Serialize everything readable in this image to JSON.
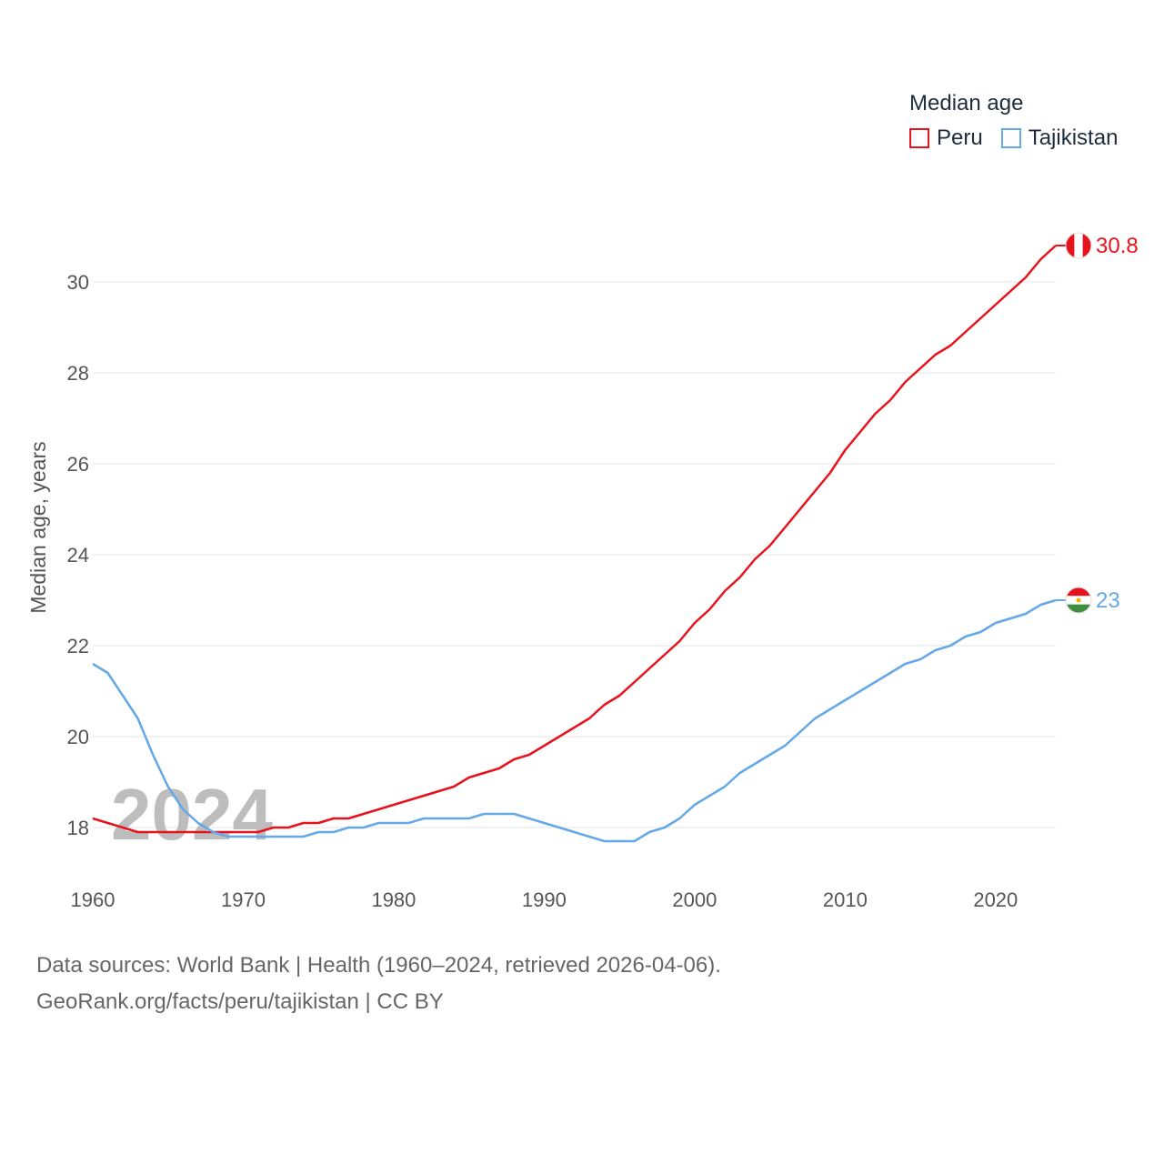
{
  "chart_data": {
    "type": "line",
    "title": "",
    "xlabel": "",
    "ylabel": "Median age, years",
    "xlim": [
      1960,
      2024
    ],
    "ylim": [
      17.0,
      31.4
    ],
    "x_ticks": [
      1960,
      1970,
      1980,
      1990,
      2000,
      2010,
      2020
    ],
    "y_ticks": [
      18,
      20,
      22,
      24,
      26,
      28,
      30
    ],
    "grid": true,
    "year_watermark": "2024",
    "legend": {
      "title": "Median age",
      "position": "top-right"
    },
    "x": [
      1960,
      1961,
      1962,
      1963,
      1964,
      1965,
      1966,
      1967,
      1968,
      1969,
      1970,
      1971,
      1972,
      1973,
      1974,
      1975,
      1976,
      1977,
      1978,
      1979,
      1980,
      1981,
      1982,
      1983,
      1984,
      1985,
      1986,
      1987,
      1988,
      1989,
      1990,
      1991,
      1992,
      1993,
      1994,
      1995,
      1996,
      1997,
      1998,
      1999,
      2000,
      2001,
      2002,
      2003,
      2004,
      2005,
      2006,
      2007,
      2008,
      2009,
      2010,
      2011,
      2012,
      2013,
      2014,
      2015,
      2016,
      2017,
      2018,
      2019,
      2020,
      2021,
      2022,
      2023,
      2024
    ],
    "series": [
      {
        "name": "Peru",
        "color": "#e8121d",
        "end_label": "30.8",
        "values": [
          18.2,
          18.1,
          18.0,
          17.9,
          17.9,
          17.9,
          17.9,
          17.9,
          17.9,
          17.9,
          17.9,
          17.9,
          18.0,
          18.0,
          18.1,
          18.1,
          18.2,
          18.2,
          18.3,
          18.4,
          18.5,
          18.6,
          18.7,
          18.8,
          18.9,
          19.1,
          19.2,
          19.3,
          19.5,
          19.6,
          19.8,
          20.0,
          20.2,
          20.4,
          20.7,
          20.9,
          21.2,
          21.5,
          21.8,
          22.1,
          22.5,
          22.8,
          23.2,
          23.5,
          23.9,
          24.2,
          24.6,
          25.0,
          25.4,
          25.8,
          26.3,
          26.7,
          27.1,
          27.4,
          27.8,
          28.1,
          28.4,
          28.6,
          28.9,
          29.2,
          29.5,
          29.8,
          30.1,
          30.5,
          30.8
        ]
      },
      {
        "name": "Tajikistan",
        "color": "#64a8e8",
        "end_label": "23",
        "values": [
          21.6,
          21.4,
          20.9,
          20.4,
          19.6,
          18.9,
          18.4,
          18.1,
          17.9,
          17.8,
          17.8,
          17.8,
          17.8,
          17.8,
          17.8,
          17.9,
          17.9,
          18.0,
          18.0,
          18.1,
          18.1,
          18.1,
          18.2,
          18.2,
          18.2,
          18.2,
          18.3,
          18.3,
          18.3,
          18.2,
          18.1,
          18.0,
          17.9,
          17.8,
          17.7,
          17.7,
          17.7,
          17.9,
          18.0,
          18.2,
          18.5,
          18.7,
          18.9,
          19.2,
          19.4,
          19.6,
          19.8,
          20.1,
          20.4,
          20.6,
          20.8,
          21.0,
          21.2,
          21.4,
          21.6,
          21.7,
          21.9,
          22.0,
          22.2,
          22.3,
          22.5,
          22.6,
          22.7,
          22.9,
          23.0
        ]
      }
    ]
  },
  "footer": {
    "line1": "Data sources: World Bank | Health (1960–2024, retrieved 2026-04-06).",
    "line2": "GeoRank.org/facts/peru/tajikistan | CC BY"
  }
}
